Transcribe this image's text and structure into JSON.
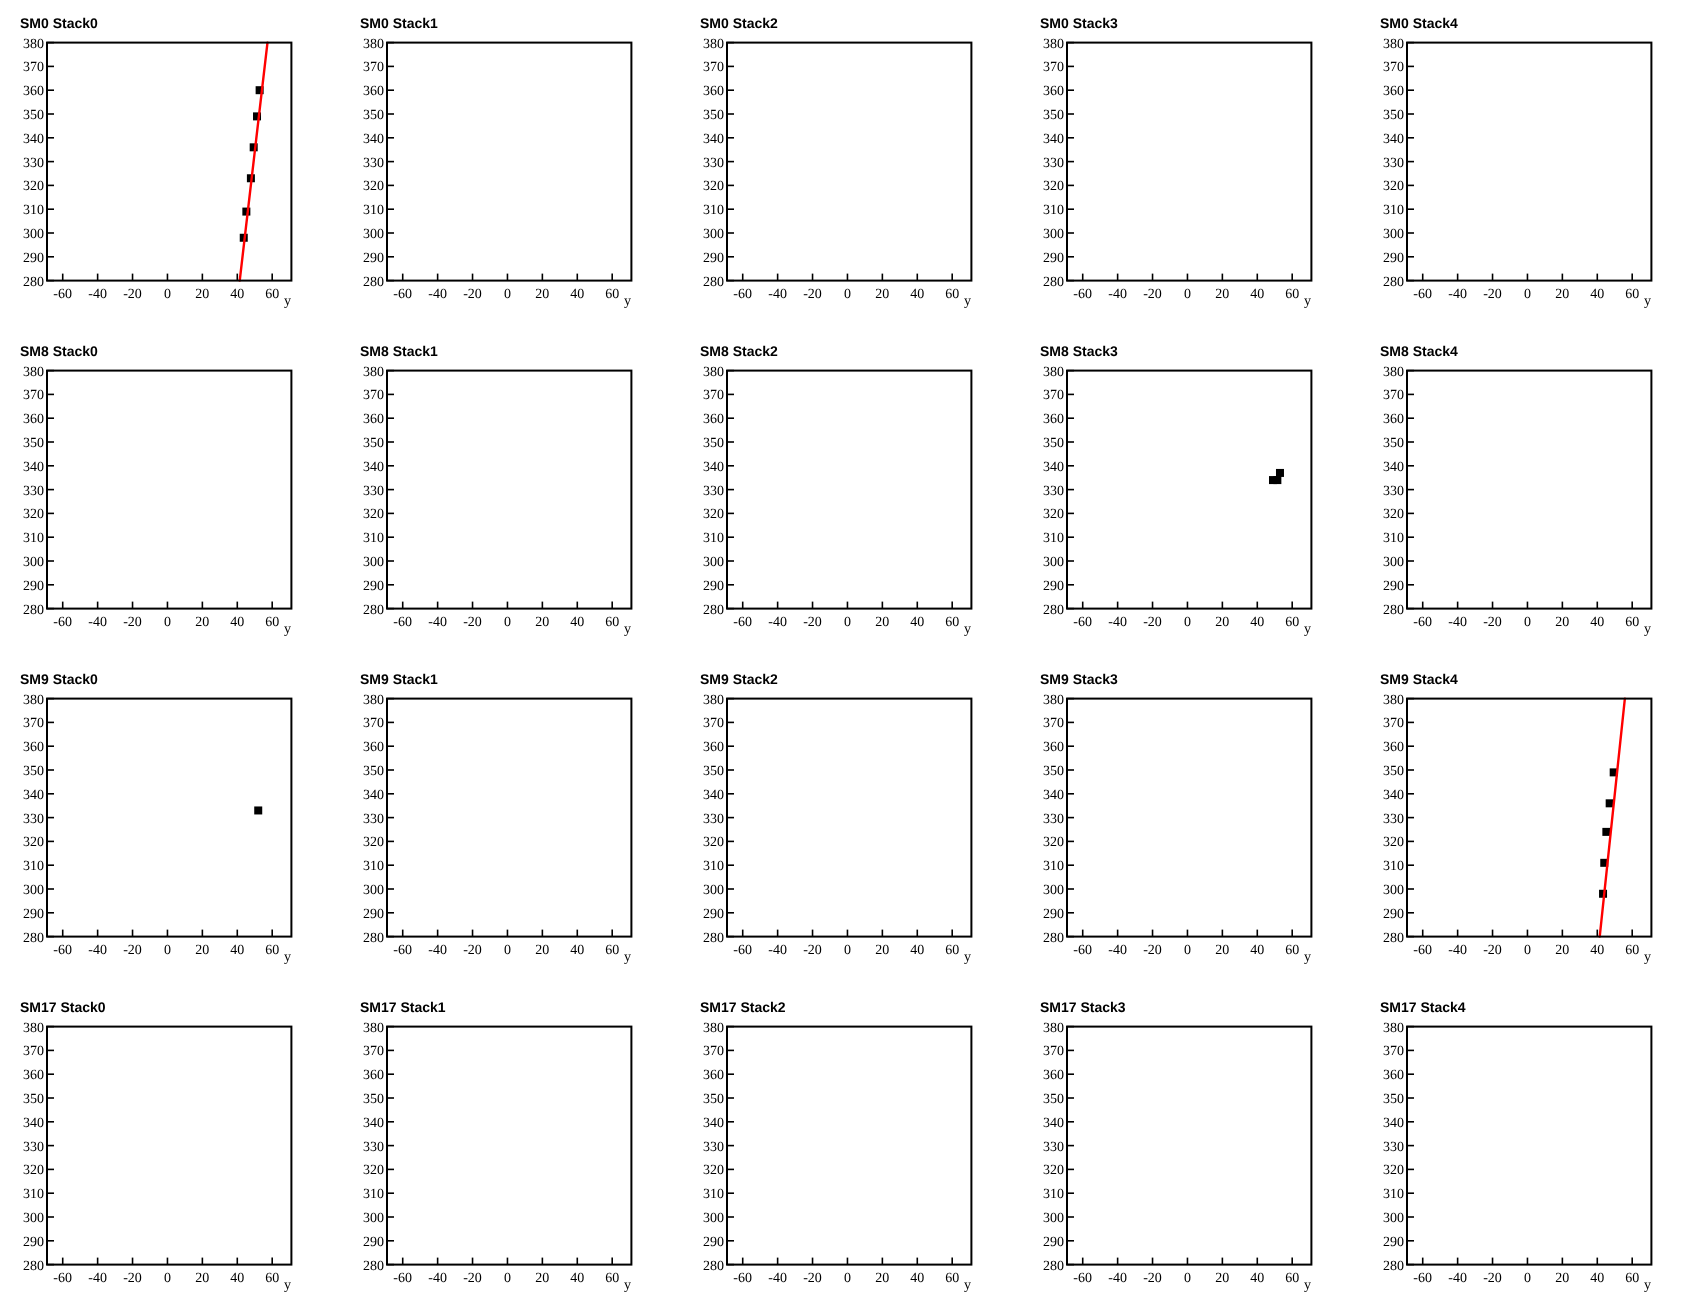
{
  "chart_data": [
    {
      "type": "scatter",
      "title": "SM0 Stack0",
      "xlabel": "y",
      "xlim": [
        -69,
        71
      ],
      "ylim": [
        280,
        380
      ],
      "xticks": [
        -60,
        -40,
        -20,
        0,
        20,
        40,
        60
      ],
      "yticks": [
        280,
        290,
        300,
        310,
        320,
        330,
        340,
        350,
        360,
        370,
        380
      ],
      "series": [
        {
          "type": "scatter",
          "marker": "square",
          "color": "#000000",
          "x": [
            43.7,
            45.2,
            47.8,
            49.4,
            51.3,
            52.8
          ],
          "values": [
            298,
            309,
            323,
            336,
            349,
            360
          ]
        },
        {
          "type": "line",
          "color": "#ff0000",
          "x": [
            41.4,
            57.3
          ],
          "values": [
            280,
            380
          ]
        }
      ]
    },
    {
      "type": "scatter",
      "title": "SM0 Stack1",
      "xlabel": "y",
      "xlim": [
        -69,
        71
      ],
      "ylim": [
        280,
        380
      ],
      "xticks": [
        -60,
        -40,
        -20,
        0,
        20,
        40,
        60
      ],
      "yticks": [
        280,
        290,
        300,
        310,
        320,
        330,
        340,
        350,
        360,
        370,
        380
      ]
    },
    {
      "type": "scatter",
      "title": "SM0 Stack2",
      "xlabel": "y",
      "xlim": [
        -69,
        71
      ],
      "ylim": [
        280,
        380
      ],
      "xticks": [
        -60,
        -40,
        -20,
        0,
        20,
        40,
        60
      ],
      "yticks": [
        280,
        290,
        300,
        310,
        320,
        330,
        340,
        350,
        360,
        370,
        380
      ]
    },
    {
      "type": "scatter",
      "title": "SM0 Stack3",
      "xlabel": "y",
      "xlim": [
        -69,
        71
      ],
      "ylim": [
        280,
        380
      ],
      "xticks": [
        -60,
        -40,
        -20,
        0,
        20,
        40,
        60
      ],
      "yticks": [
        280,
        290,
        300,
        310,
        320,
        330,
        340,
        350,
        360,
        370,
        380
      ]
    },
    {
      "type": "scatter",
      "title": "SM0 Stack4",
      "xlabel": "y",
      "xlim": [
        -69,
        71
      ],
      "ylim": [
        280,
        380
      ],
      "xticks": [
        -60,
        -40,
        -20,
        0,
        20,
        40,
        60
      ],
      "yticks": [
        280,
        290,
        300,
        310,
        320,
        330,
        340,
        350,
        360,
        370,
        380
      ]
    },
    {
      "type": "scatter",
      "title": "SM8 Stack0",
      "xlabel": "y",
      "xlim": [
        -69,
        71
      ],
      "ylim": [
        280,
        380
      ],
      "xticks": [
        -60,
        -40,
        -20,
        0,
        20,
        40,
        60
      ],
      "yticks": [
        280,
        290,
        300,
        310,
        320,
        330,
        340,
        350,
        360,
        370,
        380
      ]
    },
    {
      "type": "scatter",
      "title": "SM8 Stack1",
      "xlabel": "y",
      "xlim": [
        -69,
        71
      ],
      "ylim": [
        280,
        380
      ],
      "xticks": [
        -60,
        -40,
        -20,
        0,
        20,
        40,
        60
      ],
      "yticks": [
        280,
        290,
        300,
        310,
        320,
        330,
        340,
        350,
        360,
        370,
        380
      ]
    },
    {
      "type": "scatter",
      "title": "SM8 Stack2",
      "xlabel": "y",
      "xlim": [
        -69,
        71
      ],
      "ylim": [
        280,
        380
      ],
      "xticks": [
        -60,
        -40,
        -20,
        0,
        20,
        40,
        60
      ],
      "yticks": [
        280,
        290,
        300,
        310,
        320,
        330,
        340,
        350,
        360,
        370,
        380
      ]
    },
    {
      "type": "scatter",
      "title": "SM8 Stack3",
      "xlabel": "y",
      "xlim": [
        -69,
        71
      ],
      "ylim": [
        280,
        380
      ],
      "xticks": [
        -60,
        -40,
        -20,
        0,
        20,
        40,
        60
      ],
      "yticks": [
        280,
        290,
        300,
        310,
        320,
        330,
        340,
        350,
        360,
        370,
        380
      ],
      "series": [
        {
          "type": "scatter",
          "marker": "square",
          "color": "#000000",
          "x": [
            49,
            51.5,
            53
          ],
          "values": [
            334,
            334,
            337
          ]
        }
      ]
    },
    {
      "type": "scatter",
      "title": "SM8 Stack4",
      "xlabel": "y",
      "xlim": [
        -69,
        71
      ],
      "ylim": [
        280,
        380
      ],
      "xticks": [
        -60,
        -40,
        -20,
        0,
        20,
        40,
        60
      ],
      "yticks": [
        280,
        290,
        300,
        310,
        320,
        330,
        340,
        350,
        360,
        370,
        380
      ]
    },
    {
      "type": "scatter",
      "title": "SM9 Stack0",
      "xlabel": "y",
      "xlim": [
        -69,
        71
      ],
      "ylim": [
        280,
        380
      ],
      "xticks": [
        -60,
        -40,
        -20,
        0,
        20,
        40,
        60
      ],
      "yticks": [
        280,
        290,
        300,
        310,
        320,
        330,
        340,
        350,
        360,
        370,
        380
      ],
      "series": [
        {
          "type": "scatter",
          "marker": "square",
          "color": "#000000",
          "x": [
            52
          ],
          "values": [
            333
          ]
        }
      ]
    },
    {
      "type": "scatter",
      "title": "SM9 Stack1",
      "xlabel": "y",
      "xlim": [
        -69,
        71
      ],
      "ylim": [
        280,
        380
      ],
      "xticks": [
        -60,
        -40,
        -20,
        0,
        20,
        40,
        60
      ],
      "yticks": [
        280,
        290,
        300,
        310,
        320,
        330,
        340,
        350,
        360,
        370,
        380
      ]
    },
    {
      "type": "scatter",
      "title": "SM9 Stack2",
      "xlabel": "y",
      "xlim": [
        -69,
        71
      ],
      "ylim": [
        280,
        380
      ],
      "xticks": [
        -60,
        -40,
        -20,
        0,
        20,
        40,
        60
      ],
      "yticks": [
        280,
        290,
        300,
        310,
        320,
        330,
        340,
        350,
        360,
        370,
        380
      ]
    },
    {
      "type": "scatter",
      "title": "SM9 Stack3",
      "xlabel": "y",
      "xlim": [
        -69,
        71
      ],
      "ylim": [
        280,
        380
      ],
      "xticks": [
        -60,
        -40,
        -20,
        0,
        20,
        40,
        60
      ],
      "yticks": [
        280,
        290,
        300,
        310,
        320,
        330,
        340,
        350,
        360,
        370,
        380
      ]
    },
    {
      "type": "scatter",
      "title": "SM9 Stack4",
      "xlabel": "y",
      "xlim": [
        -69,
        71
      ],
      "ylim": [
        280,
        380
      ],
      "xticks": [
        -60,
        -40,
        -20,
        0,
        20,
        40,
        60
      ],
      "yticks": [
        280,
        290,
        300,
        310,
        320,
        330,
        340,
        350,
        360,
        370,
        380
      ],
      "series": [
        {
          "type": "scatter",
          "marker": "square",
          "color": "#000000",
          "x": [
            43.3,
            44,
            45.2,
            47.1,
            49.4
          ],
          "values": [
            298,
            311,
            324,
            336,
            349
          ]
        },
        {
          "type": "line",
          "color": "#ff0000",
          "x": [
            41.4,
            55.8
          ],
          "values": [
            280,
            380
          ]
        }
      ]
    },
    {
      "type": "scatter",
      "title": "SM17 Stack0",
      "xlabel": "y",
      "xlim": [
        -69,
        71
      ],
      "ylim": [
        280,
        380
      ],
      "xticks": [
        -60,
        -40,
        -20,
        0,
        20,
        40,
        60
      ],
      "yticks": [
        280,
        290,
        300,
        310,
        320,
        330,
        340,
        350,
        360,
        370,
        380
      ]
    },
    {
      "type": "scatter",
      "title": "SM17 Stack1",
      "xlabel": "y",
      "xlim": [
        -69,
        71
      ],
      "ylim": [
        280,
        380
      ],
      "xticks": [
        -60,
        -40,
        -20,
        0,
        20,
        40,
        60
      ],
      "yticks": [
        280,
        290,
        300,
        310,
        320,
        330,
        340,
        350,
        360,
        370,
        380
      ]
    },
    {
      "type": "scatter",
      "title": "SM17 Stack2",
      "xlabel": "y",
      "xlim": [
        -69,
        71
      ],
      "ylim": [
        280,
        380
      ],
      "xticks": [
        -60,
        -40,
        -20,
        0,
        20,
        40,
        60
      ],
      "yticks": [
        280,
        290,
        300,
        310,
        320,
        330,
        340,
        350,
        360,
        370,
        380
      ]
    },
    {
      "type": "scatter",
      "title": "SM17 Stack3",
      "xlabel": "y",
      "xlim": [
        -69,
        71
      ],
      "ylim": [
        280,
        380
      ],
      "xticks": [
        -60,
        -40,
        -20,
        0,
        20,
        40,
        60
      ],
      "yticks": [
        280,
        290,
        300,
        310,
        320,
        330,
        340,
        350,
        360,
        370,
        380
      ]
    },
    {
      "type": "scatter",
      "title": "SM17 Stack4",
      "xlabel": "y",
      "xlim": [
        -69,
        71
      ],
      "ylim": [
        280,
        380
      ],
      "xticks": [
        -60,
        -40,
        -20,
        0,
        20,
        40,
        60
      ],
      "yticks": [
        280,
        290,
        300,
        310,
        320,
        330,
        340,
        350,
        360,
        370,
        380
      ]
    }
  ]
}
